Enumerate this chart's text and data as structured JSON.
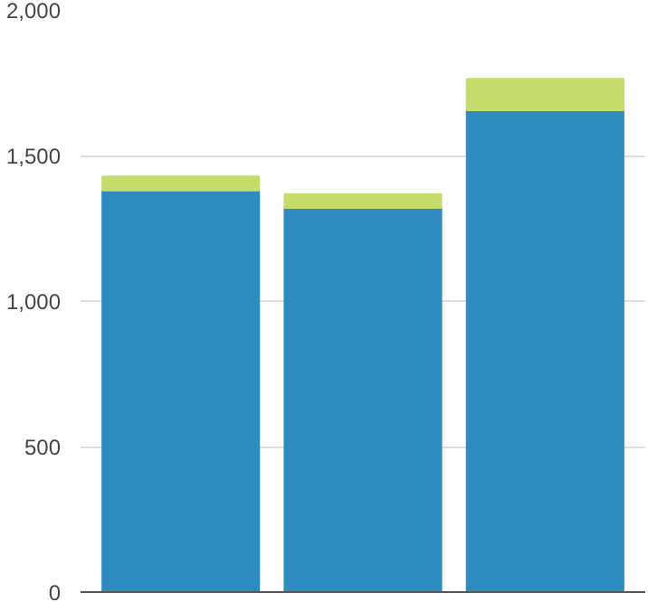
{
  "chart_data": {
    "type": "bar",
    "stacked": true,
    "categories": [
      null,
      null,
      null
    ],
    "series": [
      {
        "color": "#2e8bc0",
        "values": [
          1380,
          1320,
          1655
        ]
      },
      {
        "color": "#c5dc6a",
        "values": [
          48,
          47,
          108
        ]
      }
    ],
    "ylim": [
      0,
      2000
    ],
    "yticks": [
      0,
      {
        "value": 500,
        "label": "500"
      },
      {
        "value": 1000,
        "label": "1,000"
      },
      {
        "value": 1500,
        "label": "1,500"
      },
      {
        "value": 2000,
        "label": "2,000"
      }
    ],
    "grid": "y"
  }
}
